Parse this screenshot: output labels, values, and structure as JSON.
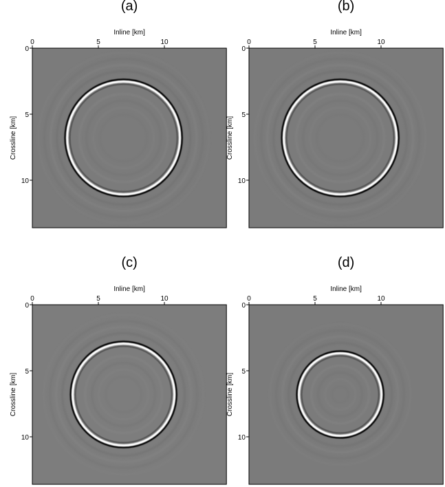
{
  "chart_data": [
    {
      "type": "image",
      "title": "(a)",
      "x_label": "Inline [km]",
      "y_label": "Crossline [km]",
      "xlim": [
        0,
        14.7
      ],
      "ylim": [
        0,
        13.6
      ],
      "xticks": [
        0,
        5,
        10
      ],
      "yticks": [
        0,
        5,
        10
      ]
    },
    {
      "type": "image",
      "title": "(b)",
      "x_label": "Inline [km]",
      "y_label": "Crossline [km]",
      "xlim": [
        0,
        14.7
      ],
      "ylim": [
        0,
        13.6
      ],
      "xticks": [
        0,
        5,
        10
      ],
      "yticks": [
        0,
        5,
        10
      ]
    },
    {
      "type": "image",
      "title": "(c)",
      "x_label": "Inline [km]",
      "y_label": "Crossline [km]",
      "xlim": [
        0,
        14.7
      ],
      "ylim": [
        0,
        13.6
      ],
      "xticks": [
        0,
        5,
        10
      ],
      "yticks": [
        0,
        5,
        10
      ]
    },
    {
      "type": "image",
      "title": "(d)",
      "x_label": "Inline [km]",
      "y_label": "Crossline [km]",
      "xlim": [
        0,
        14.7
      ],
      "ylim": [
        0,
        13.6
      ],
      "xticks": [
        0,
        5,
        10
      ],
      "yticks": [
        0,
        5,
        10
      ]
    }
  ]
}
